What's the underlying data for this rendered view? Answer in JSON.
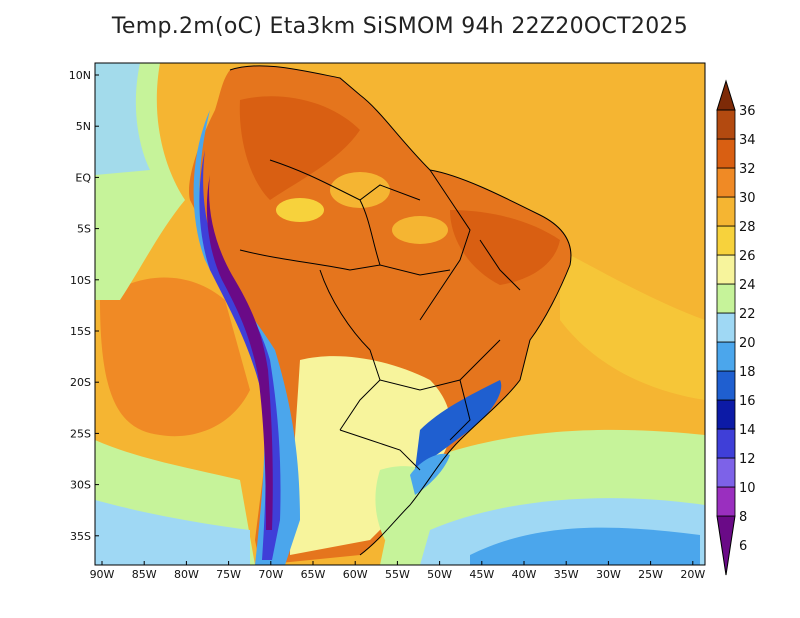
{
  "title": "Temp.2m(oC) Eta3km SiSMOM 94h 22Z20OCT2025",
  "lat_labels": [
    "10N",
    "5N",
    "EQ",
    "5S",
    "10S",
    "15S",
    "20S",
    "25S",
    "30S",
    "35S"
  ],
  "lon_labels": [
    "90W",
    "85W",
    "80W",
    "75W",
    "70W",
    "65W",
    "60W",
    "55W",
    "50W",
    "45W",
    "40W",
    "35W",
    "30W",
    "25W",
    "20W"
  ],
  "colorbar": {
    "labels": [
      "6",
      "8",
      "10",
      "12",
      "14",
      "16",
      "18",
      "20",
      "22",
      "24",
      "26",
      "28",
      "30",
      "32",
      "34",
      "36"
    ],
    "colors": [
      "#6a0a87",
      "#9a2fbf",
      "#7d62e8",
      "#3f3fd8",
      "#0c1aa6",
      "#1f5fd0",
      "#4ba6ec",
      "#9fd8f4",
      "#c6f39a",
      "#f7f49c",
      "#f7d23c",
      "#f5b532",
      "#f08a25",
      "#d95f12",
      "#b34a10",
      "#7d2a07"
    ]
  },
  "colors": {
    "ocean": "#f5b532",
    "land": "#e5751d",
    "andes_cold": "#3f3fd8",
    "andes_peak": "#6a0a87",
    "south_cool": "#9fd8f4",
    "coast_mild": "#c6f39a",
    "border": "#000000"
  }
}
